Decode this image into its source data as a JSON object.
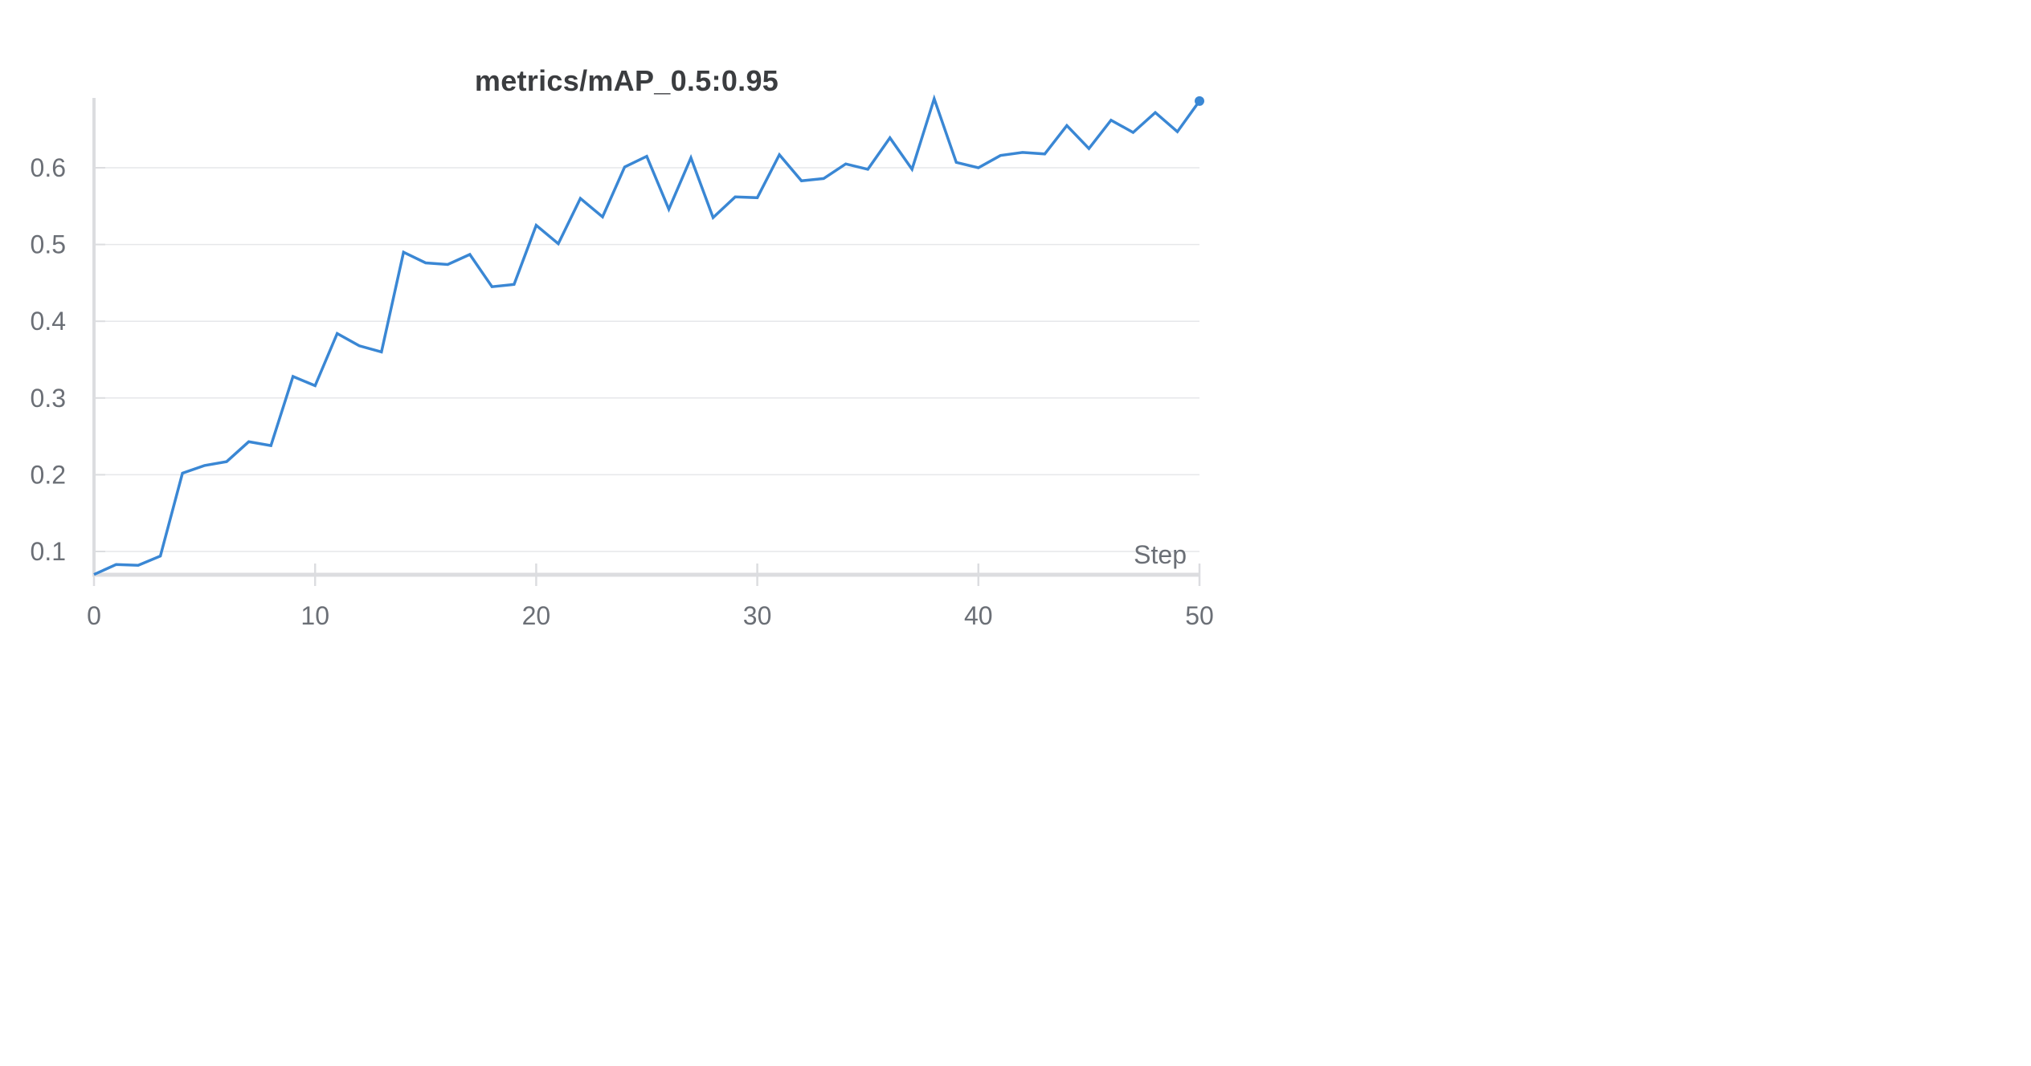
{
  "chart_data": {
    "type": "line",
    "title": "metrics/mAP_0.5:0.95",
    "xlabel": "Step",
    "ylabel": "",
    "xlim": [
      0,
      50
    ],
    "ylim": [
      0.07,
      0.7
    ],
    "x_ticks": [
      0,
      10,
      20,
      30,
      40,
      50
    ],
    "y_ticks": [
      0.1,
      0.2,
      0.3,
      0.4,
      0.5,
      0.6
    ],
    "grid": true,
    "line_color": "#3a87d4",
    "series": [
      {
        "x": [
          0,
          1,
          2,
          3,
          4,
          5,
          6,
          7,
          8,
          9,
          10,
          11,
          12,
          13,
          14,
          15,
          16,
          17,
          18,
          19,
          20,
          21,
          22,
          23,
          24,
          25,
          26,
          27,
          28,
          29,
          30,
          31,
          32,
          33,
          34,
          35,
          36,
          37,
          38,
          39,
          40,
          41,
          42,
          43,
          44,
          45,
          46,
          47,
          48,
          49,
          50
        ],
        "values": [
          0.07,
          0.083,
          0.082,
          0.094,
          0.202,
          0.212,
          0.217,
          0.243,
          0.238,
          0.328,
          0.316,
          0.384,
          0.368,
          0.36,
          0.49,
          0.476,
          0.474,
          0.487,
          0.445,
          0.448,
          0.525,
          0.501,
          0.56,
          0.536,
          0.601,
          0.615,
          0.546,
          0.613,
          0.535,
          0.562,
          0.561,
          0.617,
          0.583,
          0.586,
          0.605,
          0.598,
          0.639,
          0.598,
          0.69,
          0.607,
          0.6,
          0.616,
          0.62,
          0.618,
          0.655,
          0.625,
          0.662,
          0.646,
          0.672,
          0.647,
          0.687
        ]
      }
    ]
  }
}
